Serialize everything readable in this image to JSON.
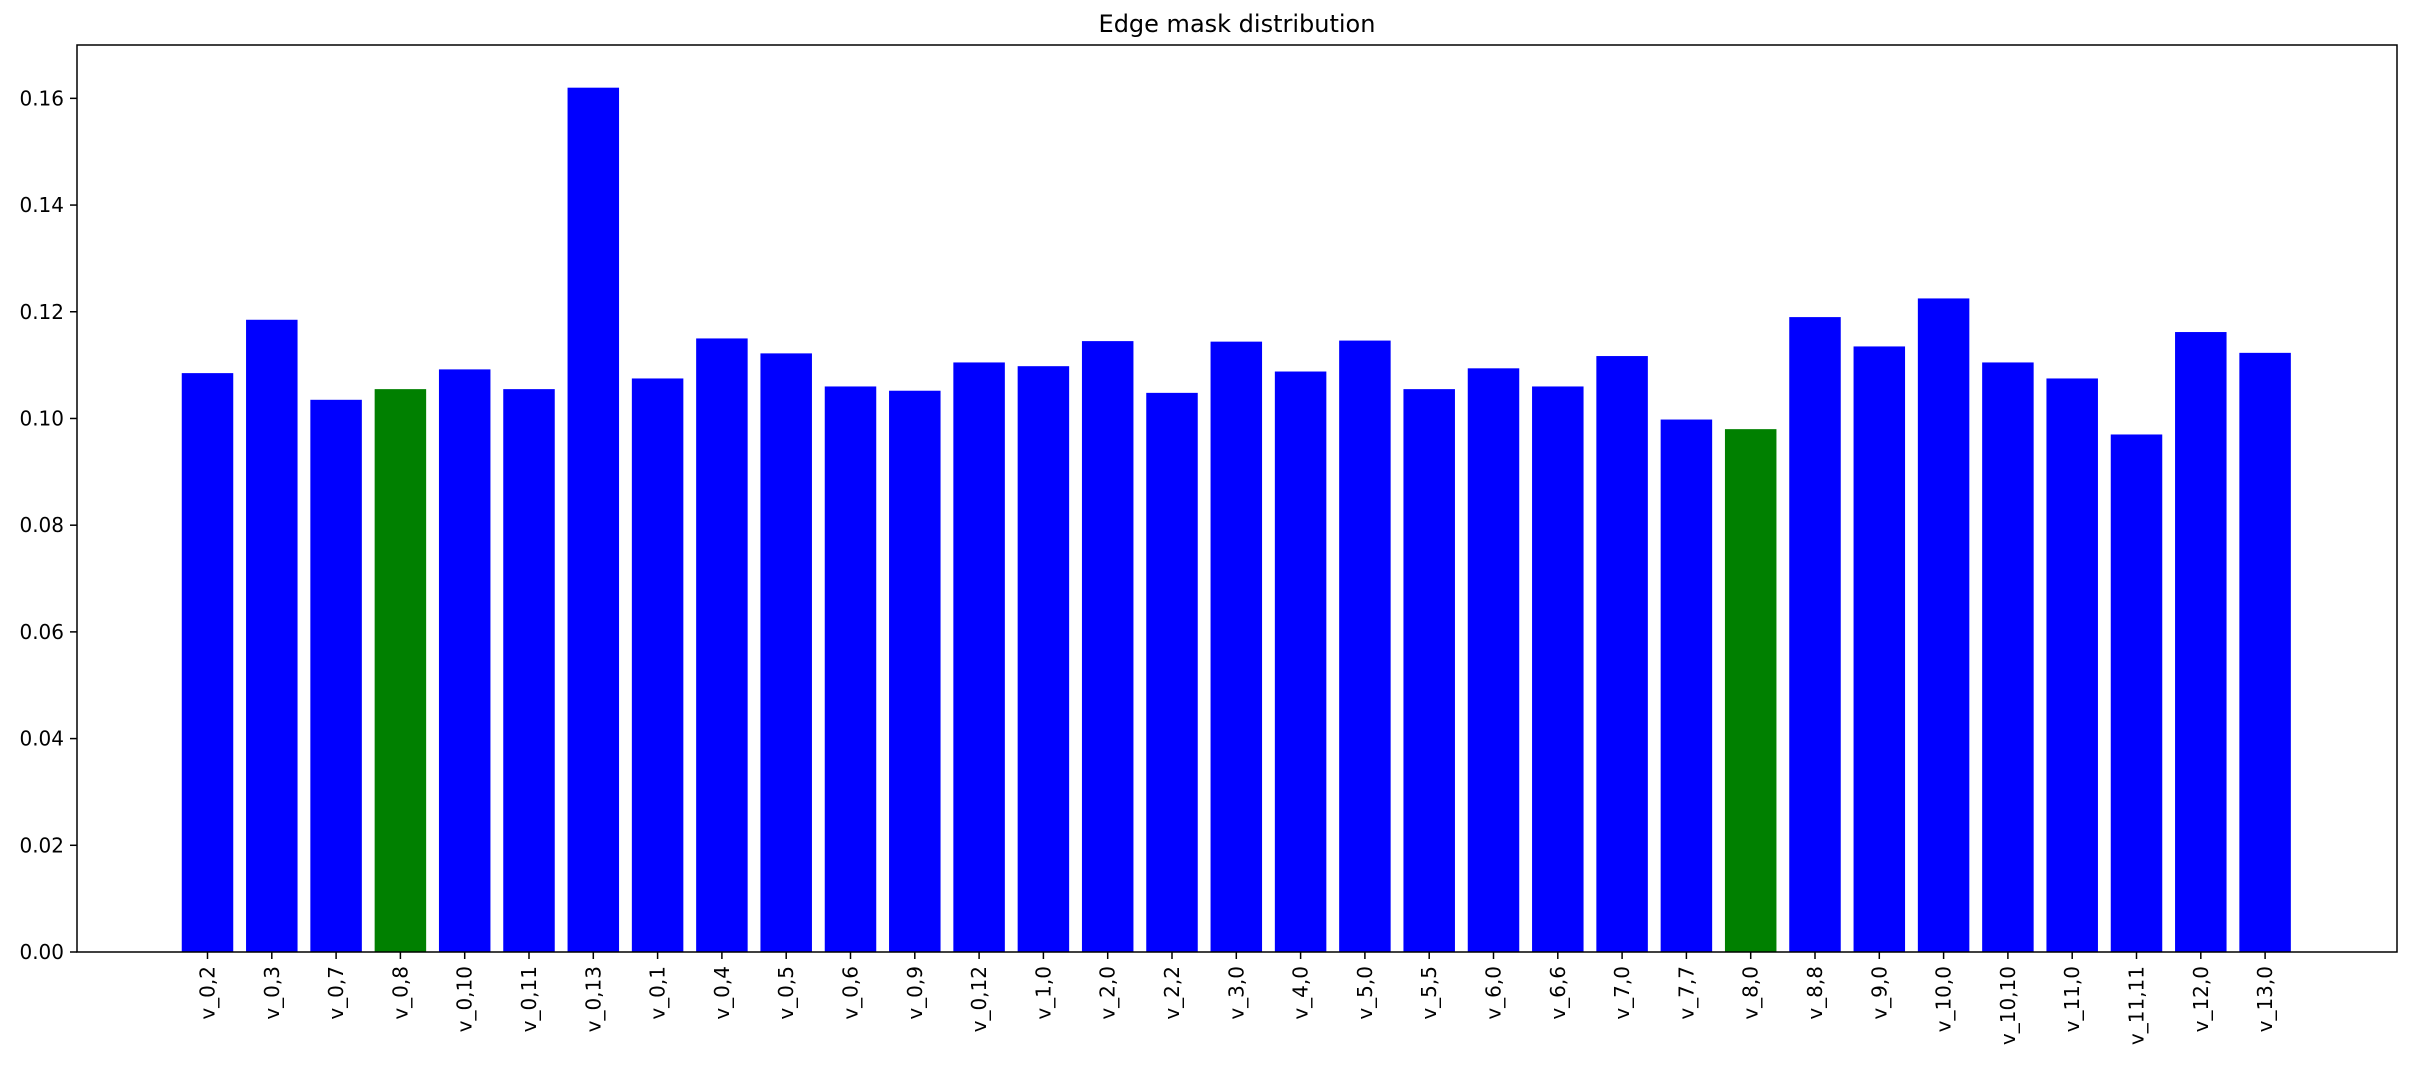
{
  "chart_data": {
    "type": "bar",
    "title": "Edge mask distribution",
    "xlabel": "",
    "ylabel": "",
    "ylim": [
      0,
      0.17
    ],
    "yticks": [
      "0.00",
      "0.02",
      "0.04",
      "0.06",
      "0.08",
      "0.10",
      "0.12",
      "0.14",
      "0.16"
    ],
    "grid": false,
    "categories": [
      "v_0,2",
      "v_0,3",
      "v_0,7",
      "v_0,8",
      "v_0,10",
      "v_0,11",
      "v_0,13",
      "v_0,1",
      "v_0,4",
      "v_0,5",
      "v_0,6",
      "v_0,9",
      "v_0,12",
      "v_1,0",
      "v_2,0",
      "v_2,2",
      "v_3,0",
      "v_4,0",
      "v_5,0",
      "v_5,5",
      "v_6,0",
      "v_6,6",
      "v_7,0",
      "v_7,7",
      "v_8,0",
      "v_8,8",
      "v_9,0",
      "v_10,0",
      "v_10,10",
      "v_11,0",
      "v_11,11",
      "v_12,0",
      "v_13,0"
    ],
    "values": [
      0.1085,
      0.1185,
      0.1035,
      0.1055,
      0.1092,
      0.1055,
      0.162,
      0.1075,
      0.115,
      0.1122,
      0.106,
      0.1052,
      0.1105,
      0.1098,
      0.1145,
      0.1048,
      0.1144,
      0.1088,
      0.1146,
      0.1055,
      0.1094,
      0.106,
      0.1117,
      0.0998,
      0.098,
      0.119,
      0.1135,
      0.1225,
      0.1105,
      0.1075,
      0.097,
      0.1162,
      0.1123
    ],
    "colors": [
      "#0000ff",
      "#0000ff",
      "#0000ff",
      "#008000",
      "#0000ff",
      "#0000ff",
      "#0000ff",
      "#0000ff",
      "#0000ff",
      "#0000ff",
      "#0000ff",
      "#0000ff",
      "#0000ff",
      "#0000ff",
      "#0000ff",
      "#0000ff",
      "#0000ff",
      "#0000ff",
      "#0000ff",
      "#0000ff",
      "#0000ff",
      "#0000ff",
      "#0000ff",
      "#0000ff",
      "#008000",
      "#0000ff",
      "#0000ff",
      "#0000ff",
      "#0000ff",
      "#0000ff",
      "#0000ff",
      "#0000ff",
      "#0000ff"
    ]
  }
}
